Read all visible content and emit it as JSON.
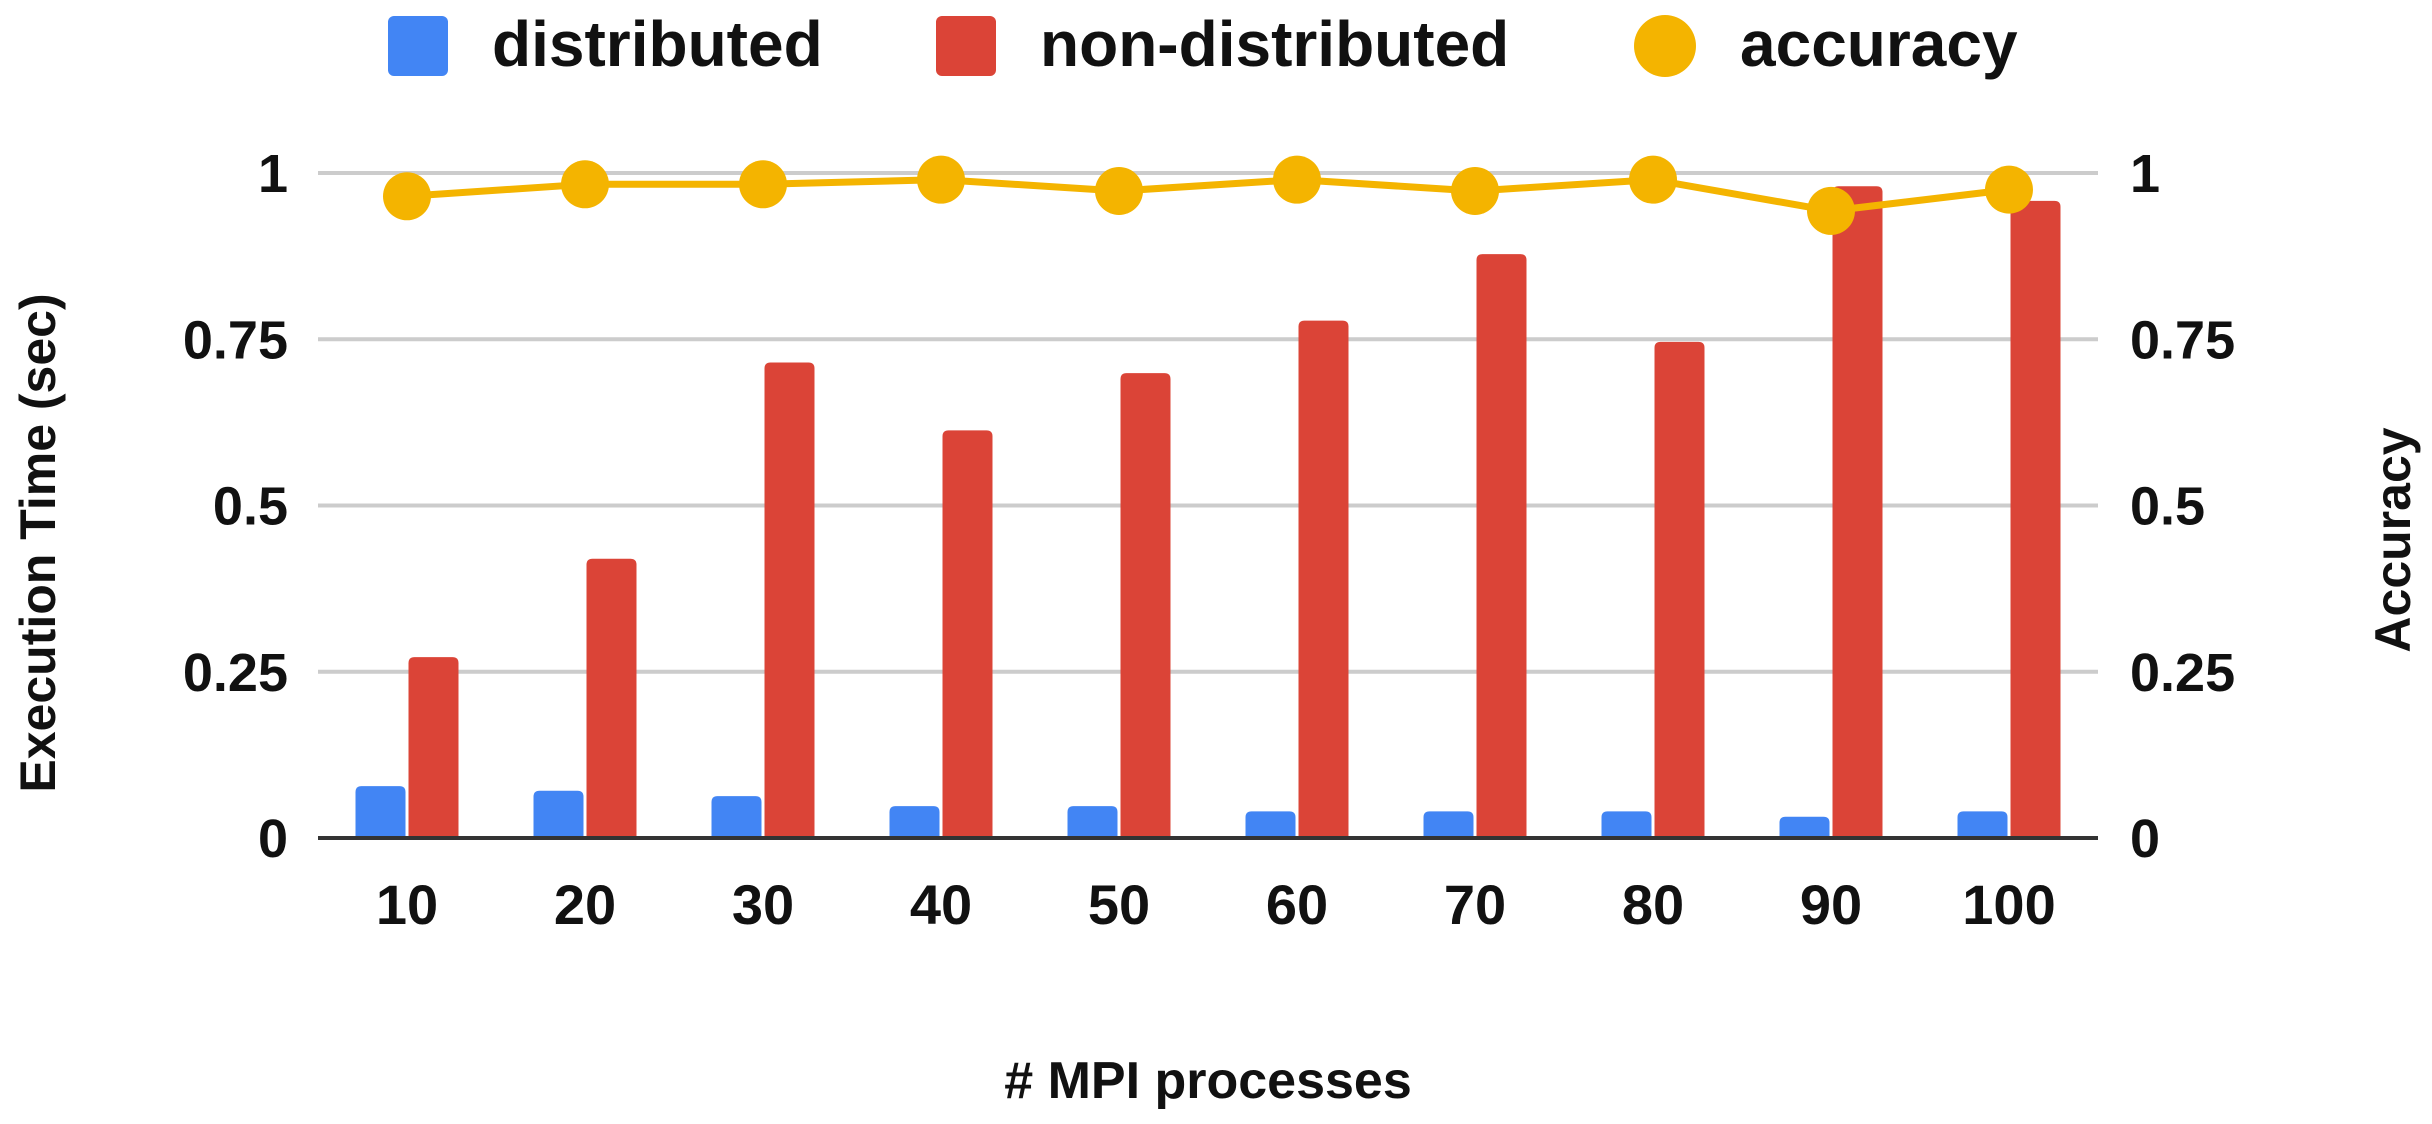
{
  "chart_data": {
    "type": "bar",
    "categories": [
      "10",
      "20",
      "30",
      "40",
      "50",
      "60",
      "70",
      "80",
      "90",
      "100"
    ],
    "series": [
      {
        "name": "distributed",
        "kind": "bar",
        "axis": "left",
        "color": "#4285F4",
        "values": [
          0.078,
          0.071,
          0.063,
          0.048,
          0.048,
          0.04,
          0.04,
          0.04,
          0.032,
          0.04
        ]
      },
      {
        "name": "non-distributed",
        "kind": "bar",
        "axis": "left",
        "color": "#DB4437",
        "values": [
          0.272,
          0.42,
          0.715,
          0.613,
          0.699,
          0.778,
          0.878,
          0.746,
          0.98,
          0.958
        ]
      },
      {
        "name": "accuracy",
        "kind": "line",
        "axis": "right",
        "color": "#F4B400",
        "values": [
          0.965,
          0.983,
          0.983,
          0.99,
          0.973,
          0.99,
          0.973,
          0.99,
          0.943,
          0.975
        ]
      }
    ],
    "title": "",
    "xlabel": "# MPI processes",
    "ylabel": "Execution Time (sec)",
    "y2label": "Accuracy",
    "ylim": [
      0,
      1
    ],
    "y2lim": [
      0,
      1
    ],
    "yticks": [
      "0",
      "0.25",
      "0.5",
      "0.75",
      "1"
    ],
    "y2ticks": [
      "0",
      "0.25",
      "0.5",
      "0.75",
      "1"
    ],
    "grid": true,
    "legend_position": "top"
  }
}
